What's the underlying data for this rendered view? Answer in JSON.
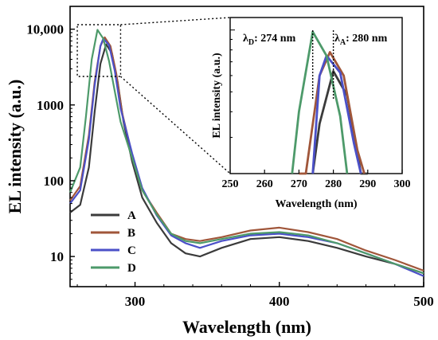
{
  "chart_data": {
    "type": "line",
    "xlabel": "Wavelength (nm)",
    "ylabel": "EL intensity (a.u.)",
    "xlim": [
      255,
      500
    ],
    "ylim": [
      4,
      20000
    ],
    "yscale": "log",
    "grid": false,
    "legend_placement": "bottom-left",
    "x_ticks": [
      {
        "value": 300,
        "label": "300"
      },
      {
        "value": 400,
        "label": "400"
      },
      {
        "value": 500,
        "label": "500"
      }
    ],
    "y_ticks": [
      {
        "value": 10,
        "label": "10"
      },
      {
        "value": 100,
        "label": "100"
      },
      {
        "value": 1000,
        "label": "1000"
      },
      {
        "value": 10000,
        "label": "10,000"
      }
    ],
    "series": [
      {
        "name": "A",
        "color": "#3b3b3b",
        "x": [
          255,
          262,
          268,
          272,
          276,
          280,
          284,
          288,
          292,
          298,
          305,
          315,
          325,
          335,
          345,
          360,
          380,
          400,
          420,
          440,
          460,
          480,
          500
        ],
        "y": [
          38,
          48,
          150,
          800,
          3500,
          6300,
          4800,
          2000,
          600,
          180,
          60,
          28,
          15,
          11,
          10,
          13,
          17,
          18,
          16,
          13,
          10,
          8,
          6
        ]
      },
      {
        "name": "B",
        "color": "#a0563a",
        "x": [
          255,
          262,
          268,
          272,
          276,
          279,
          283,
          287,
          291,
          298,
          305,
          315,
          325,
          335,
          345,
          360,
          380,
          400,
          420,
          440,
          460,
          480,
          500
        ],
        "y": [
          55,
          85,
          400,
          2000,
          6000,
          7800,
          6000,
          2600,
          800,
          220,
          75,
          38,
          20,
          17,
          16,
          18,
          22,
          24,
          21,
          17,
          12,
          9,
          6.5
        ]
      },
      {
        "name": "C",
        "color": "#4b50c8",
        "x": [
          255,
          262,
          268,
          272,
          276,
          278,
          282,
          286,
          290,
          298,
          305,
          315,
          325,
          335,
          345,
          360,
          380,
          400,
          420,
          440,
          460,
          480,
          500
        ],
        "y": [
          50,
          75,
          350,
          1800,
          6000,
          7500,
          6200,
          2800,
          900,
          230,
          80,
          35,
          19,
          15,
          13,
          16,
          19,
          20,
          18,
          15,
          11,
          8,
          5.5
        ]
      },
      {
        "name": "D",
        "color": "#4d9a6a",
        "x": [
          255,
          262,
          266,
          270,
          274,
          278,
          282,
          286,
          290,
          298,
          305,
          315,
          325,
          335,
          345,
          360,
          380,
          400,
          420,
          440,
          460,
          480,
          500
        ],
        "y": [
          70,
          150,
          700,
          4000,
          9800,
          7500,
          3800,
          1500,
          600,
          200,
          75,
          36,
          20,
          16,
          15,
          17,
          20,
          21,
          19,
          15,
          11,
          8,
          6
        ]
      }
    ],
    "inset": {
      "xlabel": "Wavelength (nm)",
      "ylabel": "EL intensity (a.u.)",
      "xlim": [
        250,
        300
      ],
      "x_ticks": [
        {
          "value": 250,
          "label": "250"
        },
        {
          "value": 260,
          "label": "260"
        },
        {
          "value": 270,
          "label": "270"
        },
        {
          "value": 280,
          "label": "280"
        },
        {
          "value": 290,
          "label": "290"
        },
        {
          "value": 300,
          "label": "300"
        }
      ],
      "annotations": [
        {
          "lambda_symbol": "λ",
          "sub": "D",
          "text": ": 274 nm",
          "value": 274
        },
        {
          "lambda_symbol": "λ",
          "sub": "A",
          "text": ": 280 nm",
          "value": 280
        }
      ]
    }
  }
}
